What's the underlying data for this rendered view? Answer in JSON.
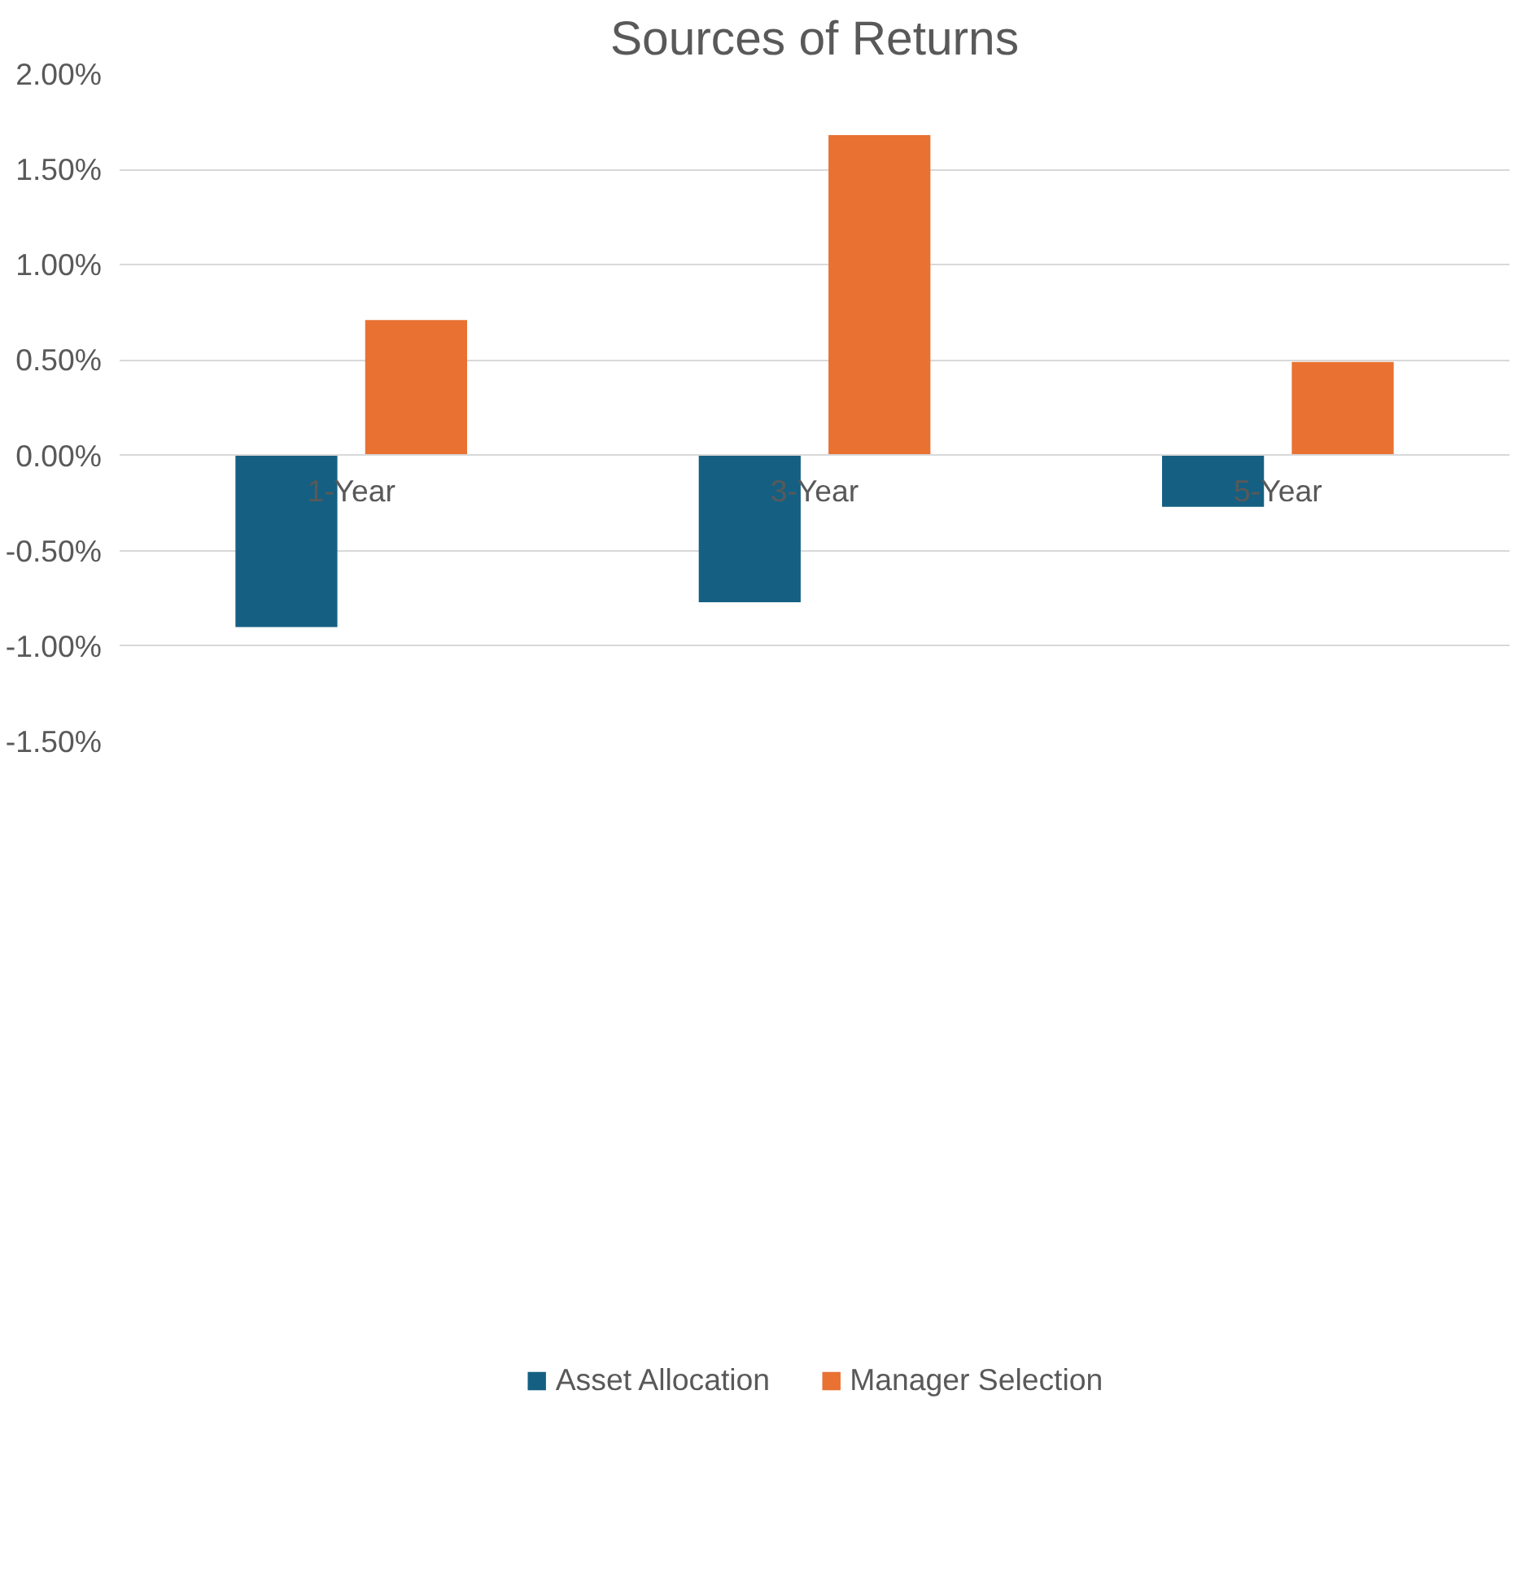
{
  "chart_data": {
    "type": "bar",
    "title": "Sources of Returns",
    "categories": [
      "1-Year",
      "3-Year",
      "5-Year"
    ],
    "series": [
      {
        "name": "Asset Allocation",
        "color": "#156082",
        "values": [
          -0.9,
          -0.77,
          -0.27
        ]
      },
      {
        "name": "Manager Selection",
        "color": "#e97132",
        "values": [
          0.71,
          1.68,
          0.49
        ]
      }
    ],
    "ylim": [
      -1.5,
      2.0
    ],
    "yticks": [
      {
        "value": -1.5,
        "label": "-1.50%"
      },
      {
        "value": -1.0,
        "label": "-1.00%"
      },
      {
        "value": -0.5,
        "label": "-0.50%"
      },
      {
        "value": 0,
        "label": "0.00%"
      },
      {
        "value": 0.5,
        "label": "0.50%"
      },
      {
        "value": 1.0,
        "label": "1.00%"
      },
      {
        "value": 1.5,
        "label": "1.50%"
      },
      {
        "value": 2.0,
        "label": "2.00%"
      }
    ],
    "grid": "y",
    "legend": "bottom"
  }
}
